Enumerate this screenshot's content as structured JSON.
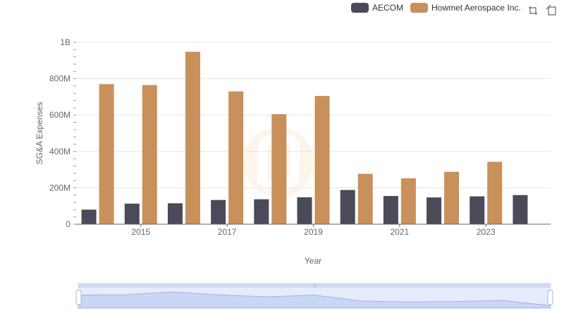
{
  "chart_data": {
    "type": "bar",
    "x": [
      2014,
      2015,
      2016,
      2017,
      2018,
      2019,
      2020,
      2021,
      2022,
      2023,
      2024
    ],
    "series": [
      {
        "name": "AECOM",
        "color": "#4a4a58",
        "values": [
          80000000,
          113000000,
          115000000,
          133000000,
          137000000,
          148000000,
          188000000,
          155000000,
          147000000,
          153000000,
          160000000
        ]
      },
      {
        "name": "Howmet Aerospace Inc.",
        "color": "#c8905a",
        "values": [
          770000000,
          765000000,
          948000000,
          730000000,
          605000000,
          705000000,
          277000000,
          252000000,
          288000000,
          343000000,
          null
        ]
      }
    ],
    "xlabel": "Year",
    "ylabel": "SG&A Expenses",
    "xticks": [
      "2015",
      "2017",
      "2019",
      "2021",
      "2023"
    ],
    "yticks": [
      "0",
      "200M",
      "400M",
      "600M",
      "800M",
      "1B"
    ],
    "ylim": [
      0,
      1000000000
    ],
    "grid": true,
    "legend_position": "top-right"
  },
  "toolbar": {
    "zoom_icon": "zoom-select-icon",
    "restore_icon": "restore-icon"
  }
}
